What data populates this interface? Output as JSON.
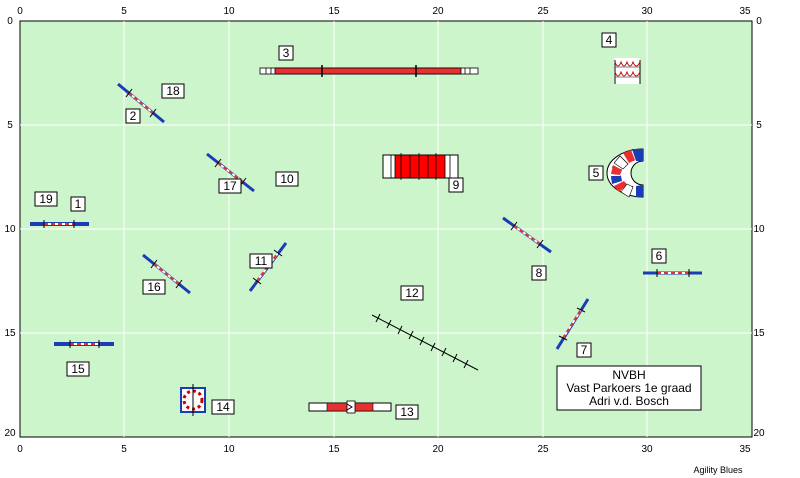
{
  "course": {
    "x_ticks": [
      "0",
      "5",
      "10",
      "15",
      "20",
      "25",
      "30",
      "35"
    ],
    "y_ticks": [
      "0",
      "5",
      "10",
      "15",
      "20"
    ],
    "obstacle_numbers": {
      "n1": "1",
      "n2": "2",
      "n3": "3",
      "n4": "4",
      "n5": "5",
      "n6": "6",
      "n7": "7",
      "n8": "8",
      "n9": "9",
      "n10": "10",
      "n11": "11",
      "n12": "12",
      "n13": "13",
      "n14": "14",
      "n15": "15",
      "n16": "16",
      "n17": "17",
      "n18": "18",
      "n19": "19"
    },
    "info": {
      "line1": "NVBH",
      "line2": "Vast Parkoers 1e graad",
      "line3": "Adri v.d. Bosch"
    },
    "footer": "Agility Blues",
    "colors": {
      "field": "#ccf5cc",
      "pole": "#1a3cb4",
      "tunnel_red": "#ff0000",
      "bar_red": "#e03030"
    }
  }
}
